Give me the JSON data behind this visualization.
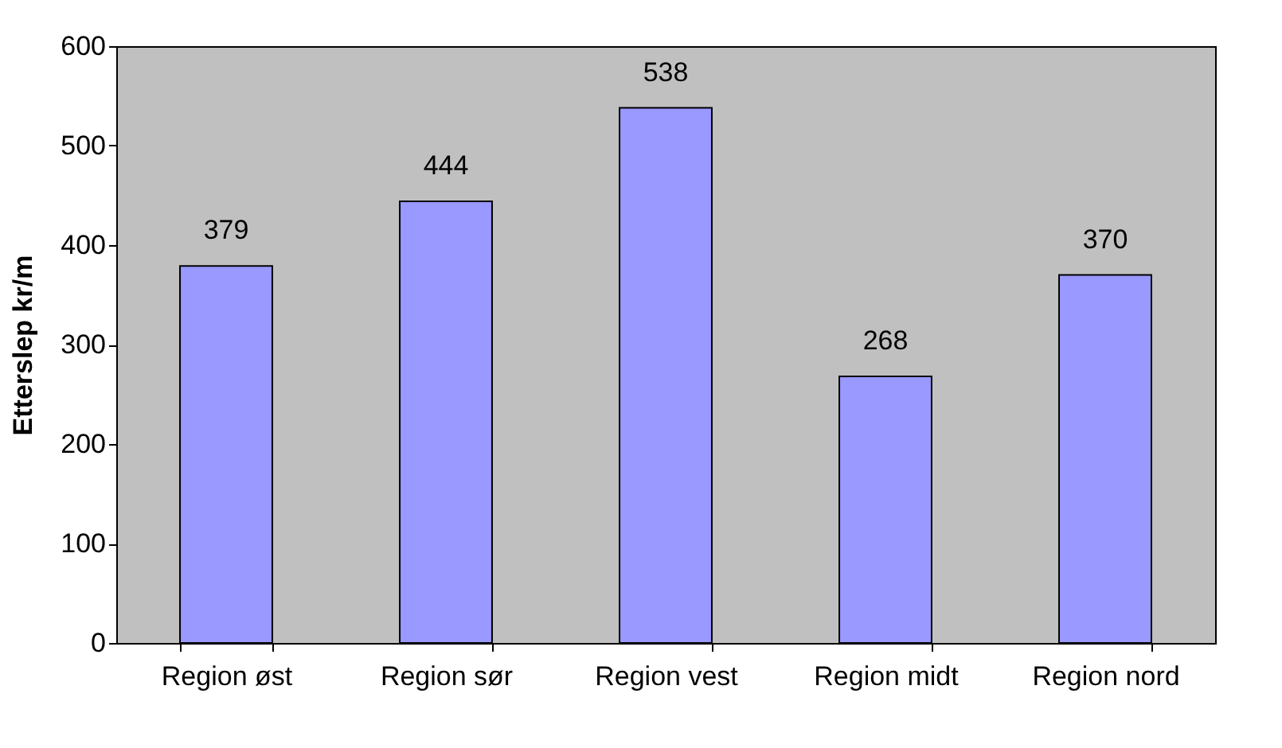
{
  "chart_data": {
    "type": "bar",
    "ylabel": "Etterslep kr/m",
    "categories": [
      "Region øst",
      "Region sør",
      "Region vest",
      "Region midt",
      "Region nord"
    ],
    "values": [
      379,
      444,
      538,
      268,
      370
    ],
    "color": "#9999ff",
    "ylim": [
      0,
      600
    ],
    "yticks": [
      0,
      100,
      200,
      300,
      400,
      500,
      600
    ],
    "grid": false,
    "data_labels": true
  }
}
